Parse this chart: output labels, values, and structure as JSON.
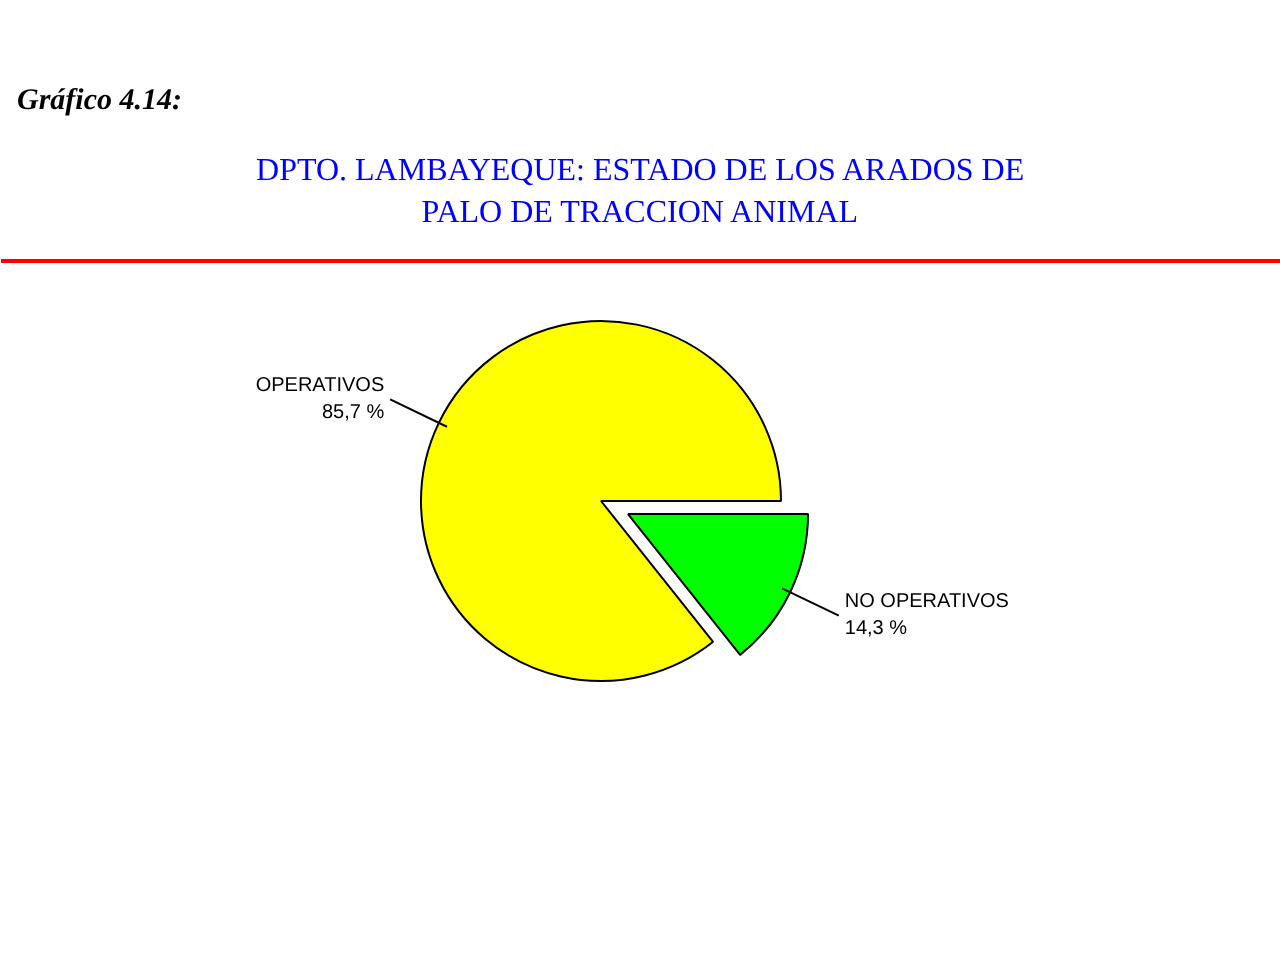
{
  "chart_data": {
    "type": "pie",
    "title": "DPTO. LAMBAYEQUE: ESTADO DE LOS ARADOS DE\nPALO DE TRACCION ANIMAL",
    "annotations": [
      "Gráfico  4.14:"
    ],
    "categories": [
      "OPERATIVOS",
      "NO OPERATIVOS"
    ],
    "values": [
      85.7,
      14.3
    ],
    "colors": [
      "#ffff00",
      "#00ff00"
    ],
    "value_labels": [
      "85,7 %",
      "14,3 %"
    ]
  }
}
